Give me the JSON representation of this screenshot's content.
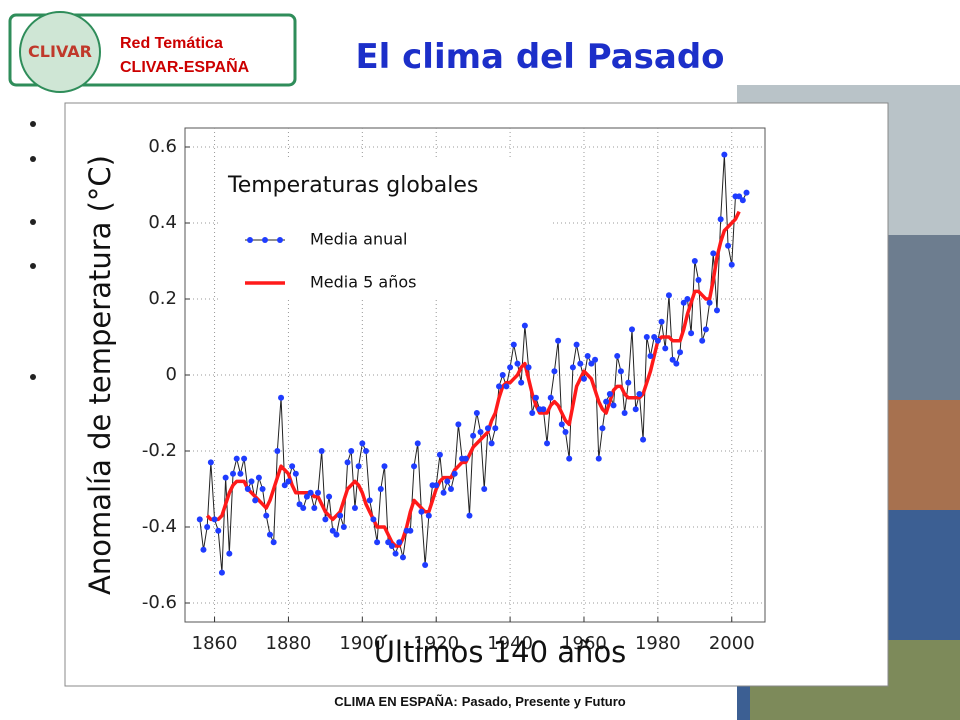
{
  "header": {
    "logo_mark": "CLIVAR",
    "logo_text": [
      "Red Temática",
      "CLIVAR-ESPAÑA"
    ],
    "title": "El clima del Pasado"
  },
  "footer": {
    "bold": "CLIMA EN ESPAÑA:",
    "text": "Pasado, Presente y Futuro"
  },
  "chart_data": {
    "type": "line",
    "title": "Temperaturas globales",
    "xlabel": "Últimos 140 años",
    "ylabel": "Anomalía de temperatura (°C)",
    "x": [
      1856,
      1857,
      1858,
      1859,
      1860,
      1861,
      1862,
      1863,
      1864,
      1865,
      1866,
      1867,
      1868,
      1869,
      1870,
      1871,
      1872,
      1873,
      1874,
      1875,
      1876,
      1877,
      1878,
      1879,
      1880,
      1881,
      1882,
      1883,
      1884,
      1885,
      1886,
      1887,
      1888,
      1889,
      1890,
      1891,
      1892,
      1893,
      1894,
      1895,
      1896,
      1897,
      1898,
      1899,
      1900,
      1901,
      1902,
      1903,
      1904,
      1905,
      1906,
      1907,
      1908,
      1909,
      1910,
      1911,
      1912,
      1913,
      1914,
      1915,
      1916,
      1917,
      1918,
      1919,
      1920,
      1921,
      1922,
      1923,
      1924,
      1925,
      1926,
      1927,
      1928,
      1929,
      1930,
      1931,
      1932,
      1933,
      1934,
      1935,
      1936,
      1937,
      1938,
      1939,
      1940,
      1941,
      1942,
      1943,
      1944,
      1945,
      1946,
      1947,
      1948,
      1949,
      1950,
      1951,
      1952,
      1953,
      1954,
      1955,
      1956,
      1957,
      1958,
      1959,
      1960,
      1961,
      1962,
      1963,
      1964,
      1965,
      1966,
      1967,
      1968,
      1969,
      1970,
      1971,
      1972,
      1973,
      1974,
      1975,
      1976,
      1977,
      1978,
      1979,
      1980,
      1981,
      1982,
      1983,
      1984,
      1985,
      1986,
      1987,
      1988,
      1989,
      1990,
      1991,
      1992,
      1993,
      1994,
      1995,
      1996,
      1997,
      1998,
      1999,
      2000,
      2001,
      2002,
      2003,
      2004
    ],
    "series": [
      {
        "name": "Media anual",
        "color": "#1f3cff",
        "line_color": "#222222",
        "marker": "circle",
        "values": [
          -0.38,
          -0.46,
          -0.4,
          -0.23,
          -0.38,
          -0.41,
          -0.52,
          -0.27,
          -0.47,
          -0.26,
          -0.22,
          -0.26,
          -0.22,
          -0.3,
          -0.28,
          -0.33,
          -0.27,
          -0.3,
          -0.37,
          -0.42,
          -0.44,
          -0.2,
          -0.06,
          -0.29,
          -0.28,
          -0.24,
          -0.26,
          -0.34,
          -0.35,
          -0.32,
          -0.31,
          -0.35,
          -0.31,
          -0.2,
          -0.38,
          -0.32,
          -0.41,
          -0.42,
          -0.37,
          -0.4,
          -0.23,
          -0.2,
          -0.35,
          -0.24,
          -0.18,
          -0.2,
          -0.33,
          -0.38,
          -0.44,
          -0.3,
          -0.24,
          -0.44,
          -0.45,
          -0.47,
          -0.44,
          -0.48,
          -0.41,
          -0.41,
          -0.24,
          -0.18,
          -0.36,
          -0.5,
          -0.37,
          -0.29,
          -0.29,
          -0.21,
          -0.31,
          -0.28,
          -0.3,
          -0.26,
          -0.13,
          -0.22,
          -0.22,
          -0.37,
          -0.16,
          -0.1,
          -0.15,
          -0.3,
          -0.14,
          -0.18,
          -0.14,
          -0.03,
          0.0,
          -0.03,
          0.02,
          0.08,
          0.03,
          -0.02,
          0.13,
          0.02,
          -0.1,
          -0.06,
          -0.09,
          -0.09,
          -0.18,
          -0.06,
          0.01,
          0.09,
          -0.13,
          -0.15,
          -0.22,
          0.02,
          0.08,
          0.03,
          -0.01,
          0.05,
          0.03,
          0.04,
          -0.22,
          -0.14,
          -0.07,
          -0.05,
          -0.08,
          0.05,
          0.01,
          -0.1,
          -0.02,
          0.12,
          -0.09,
          -0.05,
          -0.17,
          0.1,
          0.05,
          0.1,
          0.09,
          0.14,
          0.07,
          0.21,
          0.04,
          0.03,
          0.06,
          0.19,
          0.2,
          0.11,
          0.3,
          0.25,
          0.09,
          0.12,
          0.19,
          0.32,
          0.17,
          0.41,
          0.58,
          0.34,
          0.29,
          0.47,
          0.47,
          0.46,
          0.48
        ]
      },
      {
        "name": "Media 5 años",
        "color": "#ff1a1a",
        "values": [
          null,
          null,
          -0.37,
          -0.38,
          -0.38,
          -0.38,
          -0.37,
          -0.34,
          -0.31,
          -0.29,
          -0.28,
          -0.28,
          -0.28,
          -0.3,
          -0.31,
          -0.32,
          -0.33,
          -0.34,
          -0.35,
          -0.33,
          -0.3,
          -0.27,
          -0.24,
          -0.25,
          -0.26,
          -0.29,
          -0.31,
          -0.31,
          -0.31,
          -0.31,
          -0.31,
          -0.32,
          -0.32,
          -0.34,
          -0.36,
          -0.37,
          -0.38,
          -0.37,
          -0.36,
          -0.33,
          -0.3,
          -0.29,
          -0.28,
          -0.29,
          -0.31,
          -0.34,
          -0.36,
          -0.38,
          -0.4,
          -0.4,
          -0.4,
          -0.42,
          -0.44,
          -0.45,
          -0.45,
          -0.43,
          -0.4,
          -0.36,
          -0.33,
          -0.34,
          -0.35,
          -0.36,
          -0.36,
          -0.33,
          -0.3,
          -0.28,
          -0.27,
          -0.27,
          -0.27,
          -0.25,
          -0.24,
          -0.23,
          -0.23,
          -0.21,
          -0.19,
          -0.18,
          -0.17,
          -0.16,
          -0.15,
          -0.12,
          -0.1,
          -0.06,
          -0.03,
          -0.02,
          -0.02,
          -0.01,
          0.0,
          0.02,
          0.03,
          -0.01,
          -0.05,
          -0.08,
          -0.1,
          -0.1,
          -0.1,
          -0.08,
          -0.07,
          -0.08,
          -0.1,
          -0.12,
          -0.13,
          -0.08,
          -0.03,
          -0.01,
          0.01,
          0.0,
          -0.01,
          -0.04,
          -0.07,
          -0.09,
          -0.1,
          -0.07,
          -0.04,
          -0.03,
          -0.03,
          -0.05,
          -0.06,
          -0.06,
          -0.06,
          -0.06,
          -0.05,
          -0.02,
          0.01,
          0.05,
          0.09,
          0.1,
          0.1,
          0.1,
          0.09,
          0.09,
          0.09,
          0.12,
          0.16,
          0.19,
          0.22,
          0.22,
          0.21,
          0.2,
          0.2,
          0.25,
          0.31,
          0.35,
          0.38,
          0.39,
          0.4,
          0.41,
          0.43,
          null,
          null
        ]
      }
    ],
    "xlim": [
      1852,
      2009
    ],
    "ylim": [
      -0.65,
      0.65
    ],
    "xticks": [
      1860,
      1880,
      1900,
      1920,
      1940,
      1960,
      1980,
      2000
    ],
    "yticks": [
      -0.6,
      -0.4,
      -0.2,
      0,
      0.2,
      0.4,
      0.6
    ],
    "grid": true,
    "legend": "upper left"
  }
}
